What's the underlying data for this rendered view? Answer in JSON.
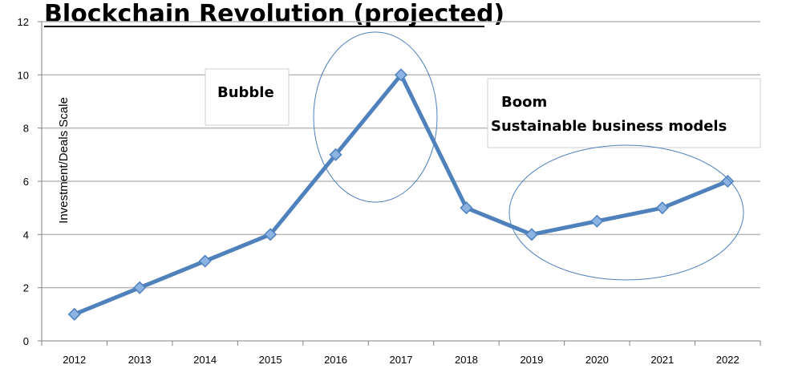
{
  "chart_data": {
    "type": "line",
    "title": "Blockchain Revolution (projected)",
    "xlabel": "",
    "ylabel": "Investment/Deals Scale",
    "categories": [
      "2012",
      "2013",
      "2014",
      "2015",
      "2016",
      "2017",
      "2018",
      "2019",
      "2020",
      "2021",
      "2022"
    ],
    "series": [
      {
        "values": [
          1,
          2,
          3,
          4,
          7,
          10,
          5,
          4,
          4.5,
          5,
          6
        ]
      }
    ],
    "ylim": [
      0,
      12
    ],
    "yticks": [
      0,
      2,
      4,
      6,
      8,
      10,
      12
    ],
    "grid": true,
    "legend": "none",
    "line_color": "#4f81bd",
    "marker_color": "#8db3e2",
    "annotations": [
      {
        "text": "Bubble"
      },
      {
        "text": "Boom"
      },
      {
        "text": "Sustainable business models"
      }
    ]
  }
}
